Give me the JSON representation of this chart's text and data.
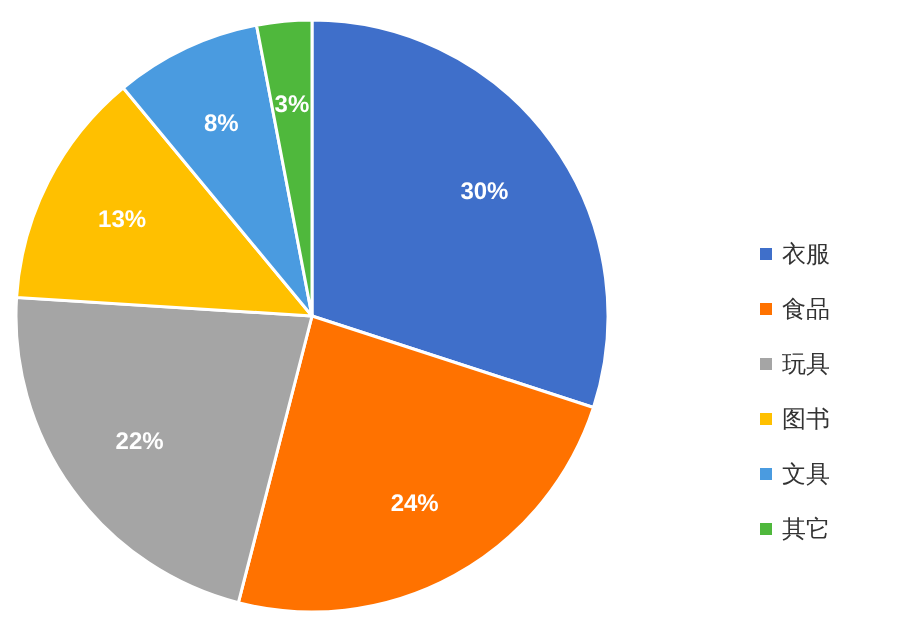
{
  "chart_data": {
    "type": "pie",
    "categories": [
      "衣服",
      "食品",
      "玩具",
      "图书",
      "文具",
      "其它"
    ],
    "values": [
      30,
      24,
      22,
      13,
      8,
      3
    ],
    "colors": [
      "#3f6fca",
      "#ff7200",
      "#a5a5a5",
      "#ffc000",
      "#4a9be0",
      "#4fb83c"
    ],
    "value_labels": [
      "30%",
      "24%",
      "22%",
      "13%",
      "8%",
      "3%"
    ],
    "legend": "right"
  }
}
